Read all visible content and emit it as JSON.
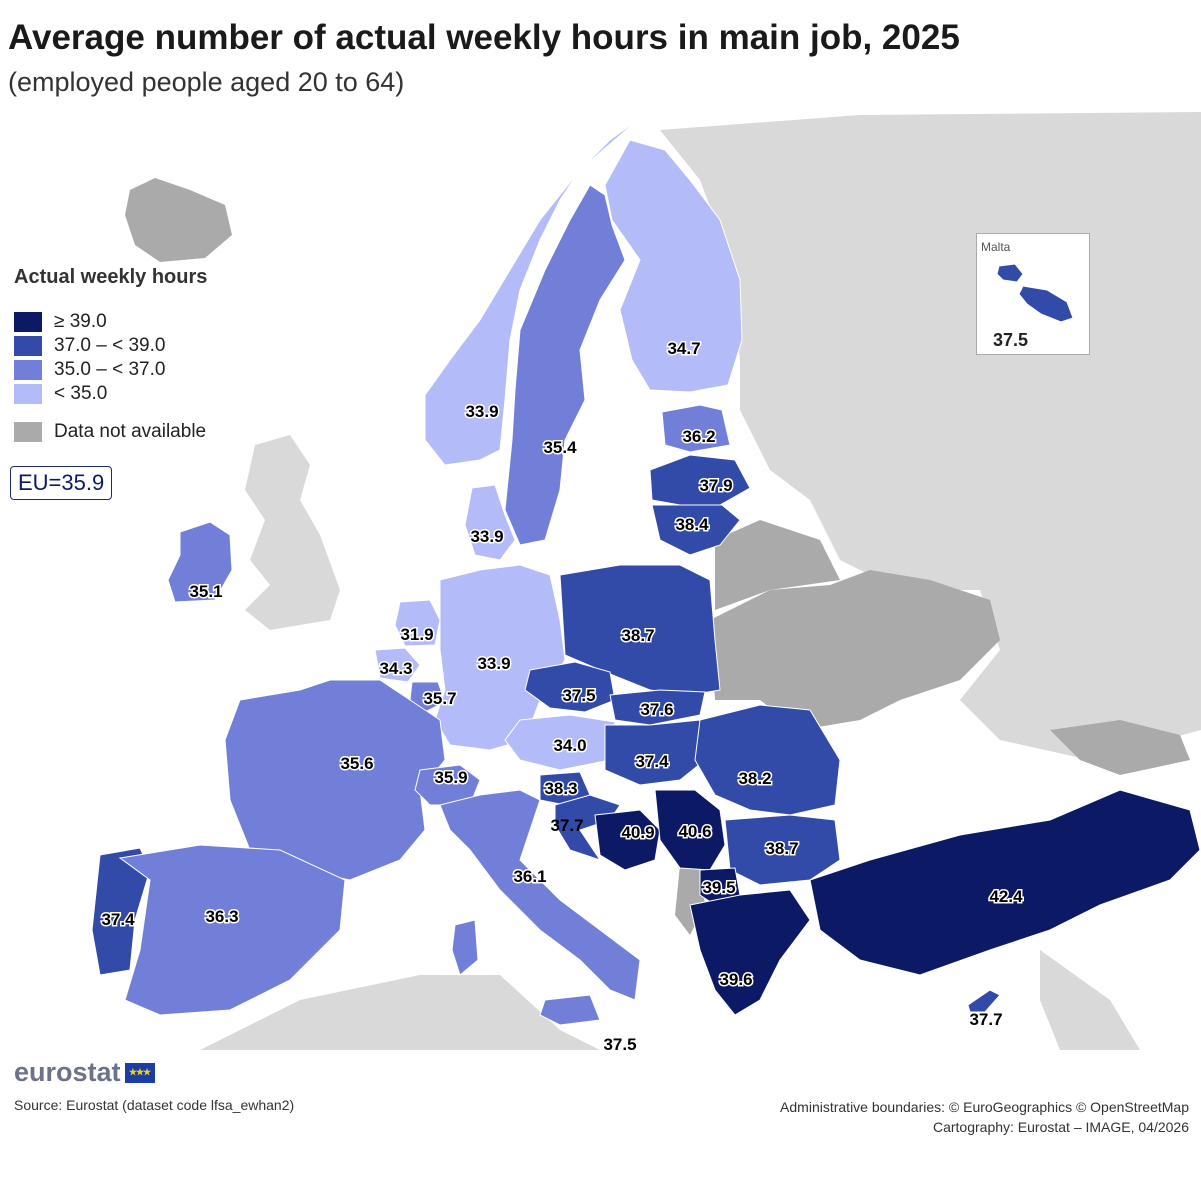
{
  "title": "Average number of actual weekly hours in main job, 2025",
  "subtitle": "(employed people aged 20 to 64)",
  "legend": {
    "title": "Actual weekly hours",
    "items": [
      {
        "label": "≥ 39.0",
        "color": "#0c1a66"
      },
      {
        "label": "37.0 – < 39.0",
        "color": "#324aa8"
      },
      {
        "label": "35.0 – < 37.0",
        "color": "#717fd9"
      },
      {
        "label": "< 35.0",
        "color": "#b3bbf8"
      }
    ],
    "na_label": "Data not available",
    "na_color": "#aaaaaa"
  },
  "eu_average": "EU=35.9",
  "inset": {
    "label": "Malta",
    "value": "37.5"
  },
  "countries": [
    {
      "name": "Finland",
      "value": 34.7,
      "label": "34.7"
    },
    {
      "name": "Sweden",
      "value": 35.4,
      "label": "35.4"
    },
    {
      "name": "Norway",
      "value": 33.9,
      "label": "33.9"
    },
    {
      "name": "Denmark",
      "value": 33.9,
      "label": "33.9"
    },
    {
      "name": "Estonia",
      "value": 36.2,
      "label": "36.2"
    },
    {
      "name": "Latvia",
      "value": 37.9,
      "label": "37.9"
    },
    {
      "name": "Lithuania",
      "value": 38.4,
      "label": "38.4"
    },
    {
      "name": "Ireland",
      "value": 35.1,
      "label": "35.1"
    },
    {
      "name": "Netherlands",
      "value": 31.9,
      "label": "31.9"
    },
    {
      "name": "Belgium",
      "value": 34.3,
      "label": "34.3"
    },
    {
      "name": "Luxembourg",
      "value": 35.7,
      "label": "35.7"
    },
    {
      "name": "Germany",
      "value": 33.9,
      "label": "33.9"
    },
    {
      "name": "Poland",
      "value": 38.7,
      "label": "38.7"
    },
    {
      "name": "Czechia",
      "value": 37.5,
      "label": "37.5"
    },
    {
      "name": "Slovakia",
      "value": 37.6,
      "label": "37.6"
    },
    {
      "name": "Austria",
      "value": 34.0,
      "label": "34.0"
    },
    {
      "name": "Hungary",
      "value": 37.4,
      "label": "37.4"
    },
    {
      "name": "Romania",
      "value": 38.2,
      "label": "38.2"
    },
    {
      "name": "France",
      "value": 35.6,
      "label": "35.6"
    },
    {
      "name": "Switzerland",
      "value": 35.9,
      "label": "35.9"
    },
    {
      "name": "Slovenia",
      "value": 38.3,
      "label": "38.3"
    },
    {
      "name": "Croatia",
      "value": 37.7,
      "label": "37.7"
    },
    {
      "name": "Bosnia and Herzegovina",
      "value": 40.9,
      "label": "40.9"
    },
    {
      "name": "Serbia",
      "value": 40.6,
      "label": "40.6"
    },
    {
      "name": "Bulgaria",
      "value": 38.7,
      "label": "38.7"
    },
    {
      "name": "North Macedonia",
      "value": 39.5,
      "label": "39.5"
    },
    {
      "name": "Greece",
      "value": 39.6,
      "label": "39.6"
    },
    {
      "name": "Türkiye",
      "value": 42.4,
      "label": "42.4"
    },
    {
      "name": "Italy",
      "value": 36.1,
      "label": "36.1"
    },
    {
      "name": "Malta",
      "value": 37.5,
      "label": "37.5"
    },
    {
      "name": "Portugal",
      "value": 37.4,
      "label": "37.4"
    },
    {
      "name": "Spain",
      "value": 36.3,
      "label": "36.3"
    },
    {
      "name": "Cyprus",
      "value": 37.7,
      "label": "37.7"
    }
  ],
  "logo": "eurostat",
  "source": "Source: Eurostat (dataset code lfsa_ewhan2)",
  "credits": {
    "line1": "Administrative boundaries: © EuroGeographics © OpenStreetMap",
    "line2": "Cartography: Eurostat – IMAGE, 04/2026"
  }
}
